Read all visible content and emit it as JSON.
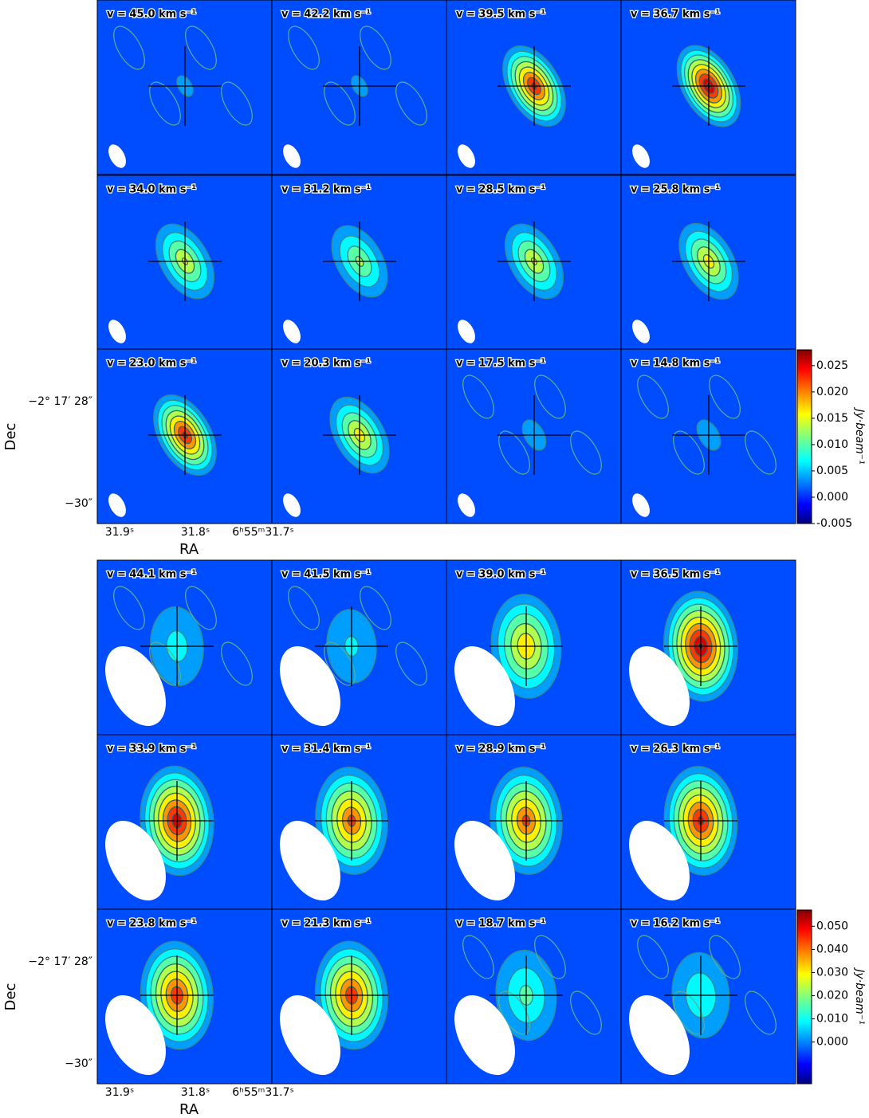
{
  "figures": [
    {
      "panels": [
        {
          "label": "v = 45.0 km s⁻¹"
        },
        {
          "label": "v = 42.2 km s⁻¹"
        },
        {
          "label": "v = 39.5 km s⁻¹"
        },
        {
          "label": "v = 36.7 km s⁻¹"
        },
        {
          "label": "v = 34.0 km s⁻¹"
        },
        {
          "label": "v = 31.2 km s⁻¹"
        },
        {
          "label": "v = 28.5 km s⁻¹"
        },
        {
          "label": "v = 25.8 km s⁻¹"
        },
        {
          "label": "v = 23.0 km s⁻¹"
        },
        {
          "label": "v = 20.3 km s⁻¹"
        },
        {
          "label": "v = 17.5 km s⁻¹"
        },
        {
          "label": "v = 14.8 km s⁻¹"
        }
      ],
      "y_axis": {
        "label": "Dec",
        "ticks": [
          "−2° 17′ 28″",
          "−30″"
        ]
      },
      "x_axis": {
        "label": "RA",
        "ticks": [
          "31.9ˢ",
          "31.8ˢ",
          "6ʰ55ᵐ31.7ˢ"
        ]
      },
      "colorbar": {
        "label": "Jy·beam⁻¹",
        "lim": [
          -0.005,
          0.028
        ],
        "ticks": [
          0.025,
          {
            "value": 0.02,
            "label": "0.020"
          },
          0.015,
          {
            "value": 0.01,
            "label": "0.010"
          },
          0.005,
          {
            "value": 0,
            "label": "0.000"
          },
          -0.005
        ]
      }
    },
    {
      "panels": [
        {
          "label": "v = 44.1 km s⁻¹"
        },
        {
          "label": "v = 41.5 km s⁻¹"
        },
        {
          "label": "v = 39.0 km s⁻¹"
        },
        {
          "label": "v = 36.5 km s⁻¹"
        },
        {
          "label": "v = 33.9 km s⁻¹"
        },
        {
          "label": "v = 31.4 km s⁻¹"
        },
        {
          "label": "v = 28.9 km s⁻¹"
        },
        {
          "label": "v = 26.3 km s⁻¹"
        },
        {
          "label": "v = 23.8 km s⁻¹"
        },
        {
          "label": "v = 21.3 km s⁻¹"
        },
        {
          "label": "v = 18.7 km s⁻¹"
        },
        {
          "label": "v = 16.2 km s⁻¹"
        }
      ],
      "y_axis": {
        "label": "Dec",
        "ticks": [
          "−2° 17′ 28″",
          "−30″"
        ]
      },
      "x_axis": {
        "label": "RA",
        "ticks": [
          "31.9ˢ",
          "31.8ˢ",
          "6ʰ55ᵐ31.7ˢ"
        ]
      },
      "colorbar": {
        "label": "Jy·beam⁻¹",
        "lim": [
          -0.018,
          0.057
        ],
        "ticks": [
          {
            "value": 0.05,
            "label": "0.050"
          },
          {
            "value": 0.04,
            "label": "0.040"
          },
          {
            "value": 0.03,
            "label": "0.030"
          },
          {
            "value": 0.02,
            "label": "0.020"
          },
          {
            "value": 0.01,
            "label": "0.010"
          },
          {
            "value": 0,
            "label": "0.000"
          }
        ]
      }
    }
  ]
}
